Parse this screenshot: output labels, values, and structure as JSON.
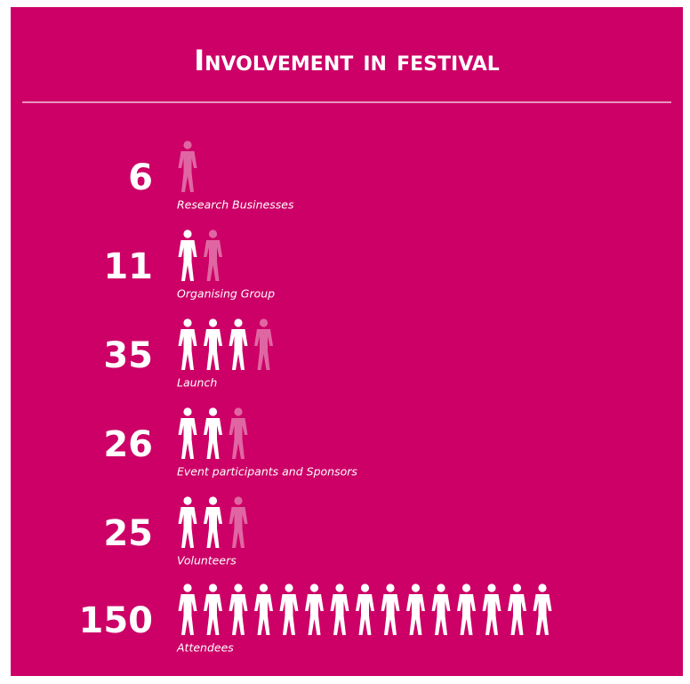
{
  "chart_data": {
    "type": "pictograph",
    "title": "Involvement in festival",
    "color": "#cc0066",
    "categories": [
      "Research Businesses",
      "Organising Group",
      "Launch",
      "Event participants and Sponsors",
      "Volunteers",
      "Attendees"
    ],
    "values": [
      6,
      11,
      35,
      26,
      25,
      150
    ]
  }
}
